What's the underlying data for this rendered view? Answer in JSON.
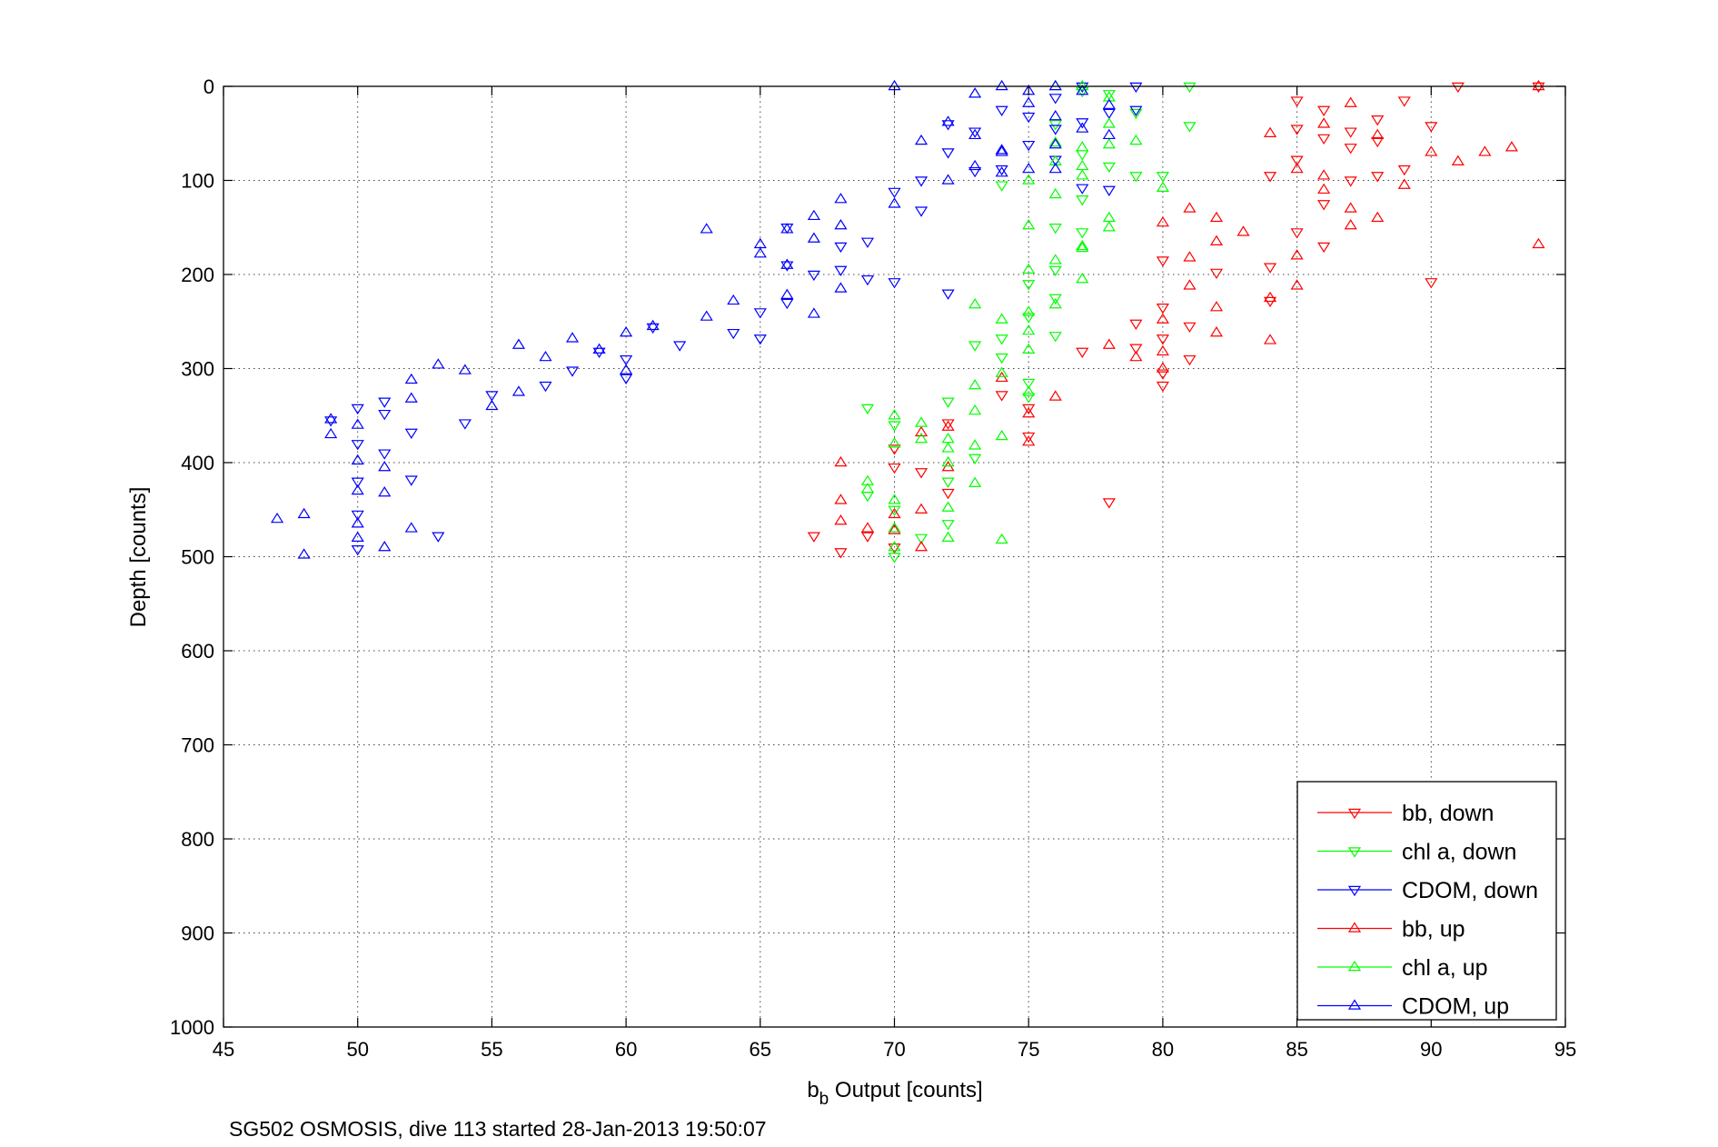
{
  "chart_data": {
    "type": "scatter",
    "title": "",
    "xlabel": "b",
    "xlabel_sub": "b",
    "xlabel_rest": " Output [counts]",
    "ylabel": "Depth [counts]",
    "caption": "SG502 OSMOSIS, dive 113 started 28-Jan-2013 19:50:07",
    "xlim": [
      45,
      95
    ],
    "ylim": [
      0,
      1000
    ],
    "y_reversed": true,
    "x_ticks": [
      45,
      50,
      55,
      60,
      65,
      70,
      75,
      80,
      85,
      90,
      95
    ],
    "y_ticks": [
      0,
      100,
      200,
      300,
      400,
      500,
      600,
      700,
      800,
      900,
      1000
    ],
    "grid": true,
    "legend_position": "bottom-right",
    "colors": {
      "red": "#ff0000",
      "green": "#00ff00",
      "blue": "#0000ff"
    },
    "series": [
      {
        "name": "bb, down",
        "color": "#ff0000",
        "marker": "triangle-down",
        "points": [
          [
            94,
            0
          ],
          [
            91,
            0
          ],
          [
            89,
            15
          ],
          [
            88,
            35
          ],
          [
            88,
            58
          ],
          [
            87,
            65
          ],
          [
            86,
            25
          ],
          [
            85,
            45
          ],
          [
            85,
            78
          ],
          [
            87,
            100
          ],
          [
            86,
            125
          ],
          [
            85,
            155
          ],
          [
            84,
            95
          ],
          [
            88,
            95
          ],
          [
            89,
            88
          ],
          [
            90,
            42
          ],
          [
            90,
            208
          ],
          [
            86,
            170
          ],
          [
            80,
            185
          ],
          [
            80,
            235
          ],
          [
            80,
            268
          ],
          [
            79,
            252
          ],
          [
            79,
            278
          ],
          [
            80,
            305
          ],
          [
            80,
            318
          ],
          [
            81,
            290
          ],
          [
            81,
            255
          ],
          [
            82,
            198
          ],
          [
            84,
            192
          ],
          [
            84,
            228
          ],
          [
            75,
            342
          ],
          [
            74,
            328
          ],
          [
            72,
            358
          ],
          [
            72,
            432
          ],
          [
            70,
            405
          ],
          [
            70,
            385
          ],
          [
            69,
            478
          ],
          [
            70,
            490
          ],
          [
            71,
            410
          ],
          [
            67,
            478
          ],
          [
            68,
            495
          ],
          [
            75,
            372
          ],
          [
            77,
            282
          ],
          [
            78,
            442
          ],
          [
            86,
            55
          ],
          [
            87,
            48
          ],
          [
            85,
            15
          ]
        ]
      },
      {
        "name": "chl a, down",
        "color": "#00ff00",
        "marker": "triangle-down",
        "points": [
          [
            81,
            0
          ],
          [
            81,
            42
          ],
          [
            79,
            28
          ],
          [
            79,
            95
          ],
          [
            78,
            8
          ],
          [
            77,
            5
          ],
          [
            76,
            40
          ],
          [
            77,
            72
          ],
          [
            78,
            85
          ],
          [
            77,
            120
          ],
          [
            76,
            150
          ],
          [
            76,
            195
          ],
          [
            77,
            155
          ],
          [
            76,
            225
          ],
          [
            75,
            210
          ],
          [
            74,
            105
          ],
          [
            75,
            245
          ],
          [
            74,
            288
          ],
          [
            75,
            315
          ],
          [
            74,
            268
          ],
          [
            73,
            275
          ],
          [
            72,
            335
          ],
          [
            73,
            395
          ],
          [
            72,
            420
          ],
          [
            70,
            360
          ],
          [
            69,
            342
          ],
          [
            69,
            435
          ],
          [
            70,
            450
          ],
          [
            71,
            480
          ],
          [
            70,
            500
          ],
          [
            72,
            465
          ],
          [
            80,
            95
          ],
          [
            76,
            265
          ],
          [
            75,
            330
          ]
        ]
      },
      {
        "name": "CDOM, down",
        "color": "#0000ff",
        "marker": "triangle-down",
        "points": [
          [
            79,
            0
          ],
          [
            79,
            25
          ],
          [
            78,
            28
          ],
          [
            78,
            110
          ],
          [
            77,
            0
          ],
          [
            77,
            38
          ],
          [
            77,
            108
          ],
          [
            76,
            12
          ],
          [
            76,
            45
          ],
          [
            76,
            78
          ],
          [
            75,
            32
          ],
          [
            75,
            62
          ],
          [
            74,
            88
          ],
          [
            74,
            25
          ],
          [
            73,
            90
          ],
          [
            73,
            48
          ],
          [
            72,
            40
          ],
          [
            72,
            70
          ],
          [
            71,
            100
          ],
          [
            71,
            132
          ],
          [
            70,
            112
          ],
          [
            70,
            208
          ],
          [
            69,
            165
          ],
          [
            69,
            205
          ],
          [
            68,
            170
          ],
          [
            68,
            195
          ],
          [
            67,
            200
          ],
          [
            66,
            150
          ],
          [
            66,
            190
          ],
          [
            66,
            230
          ],
          [
            65,
            240
          ],
          [
            65,
            268
          ],
          [
            64,
            262
          ],
          [
            62,
            275
          ],
          [
            61,
            256
          ],
          [
            60,
            290
          ],
          [
            60,
            310
          ],
          [
            59,
            282
          ],
          [
            58,
            302
          ],
          [
            57,
            318
          ],
          [
            55,
            328
          ],
          [
            54,
            358
          ],
          [
            53,
            478
          ],
          [
            52,
            368
          ],
          [
            52,
            418
          ],
          [
            51,
            335
          ],
          [
            51,
            348
          ],
          [
            51,
            390
          ],
          [
            50,
            342
          ],
          [
            50,
            380
          ],
          [
            50,
            420
          ],
          [
            50,
            455
          ],
          [
            50,
            492
          ],
          [
            49,
            355
          ],
          [
            72,
            220
          ]
        ]
      },
      {
        "name": "bb, up",
        "color": "#ff0000",
        "marker": "triangle-up",
        "points": [
          [
            94,
            0
          ],
          [
            93,
            65
          ],
          [
            92,
            70
          ],
          [
            91,
            80
          ],
          [
            90,
            70
          ],
          [
            94,
            168
          ],
          [
            89,
            105
          ],
          [
            88,
            140
          ],
          [
            87,
            130
          ],
          [
            87,
            148
          ],
          [
            86,
            110
          ],
          [
            86,
            95
          ],
          [
            85,
            180
          ],
          [
            85,
            212
          ],
          [
            84,
            50
          ],
          [
            84,
            225
          ],
          [
            84,
            270
          ],
          [
            83,
            155
          ],
          [
            82,
            140
          ],
          [
            82,
            165
          ],
          [
            82,
            235
          ],
          [
            82,
            262
          ],
          [
            81,
            130
          ],
          [
            81,
            182
          ],
          [
            81,
            212
          ],
          [
            80,
            145
          ],
          [
            80,
            248
          ],
          [
            80,
            282
          ],
          [
            80,
            300
          ],
          [
            79,
            288
          ],
          [
            78,
            275
          ],
          [
            76,
            330
          ],
          [
            75,
            348
          ],
          [
            75,
            378
          ],
          [
            74,
            310
          ],
          [
            72,
            362
          ],
          [
            72,
            405
          ],
          [
            71,
            368
          ],
          [
            71,
            450
          ],
          [
            71,
            490
          ],
          [
            70,
            455
          ],
          [
            70,
            472
          ],
          [
            69,
            470
          ],
          [
            68,
            400
          ],
          [
            68,
            440
          ],
          [
            68,
            462
          ],
          [
            85,
            88
          ],
          [
            87,
            18
          ],
          [
            88,
            52
          ],
          [
            86,
            40
          ]
        ]
      },
      {
        "name": "chl a, up",
        "color": "#00ff00",
        "marker": "triangle-up",
        "points": [
          [
            76,
            0
          ],
          [
            77,
            0
          ],
          [
            78,
            12
          ],
          [
            78,
            40
          ],
          [
            77,
            65
          ],
          [
            76,
            80
          ],
          [
            77,
            85
          ],
          [
            78,
            62
          ],
          [
            78,
            140
          ],
          [
            78,
            150
          ],
          [
            77,
            95
          ],
          [
            77,
            172
          ],
          [
            77,
            205
          ],
          [
            76,
            115
          ],
          [
            76,
            185
          ],
          [
            76,
            232
          ],
          [
            75,
            100
          ],
          [
            75,
            148
          ],
          [
            75,
            195
          ],
          [
            75,
            240
          ],
          [
            75,
            260
          ],
          [
            75,
            280
          ],
          [
            74,
            248
          ],
          [
            74,
            305
          ],
          [
            74,
            372
          ],
          [
            74,
            482
          ],
          [
            73,
            232
          ],
          [
            73,
            318
          ],
          [
            73,
            345
          ],
          [
            73,
            382
          ],
          [
            73,
            422
          ],
          [
            72,
            375
          ],
          [
            72,
            385
          ],
          [
            72,
            400
          ],
          [
            72,
            448
          ],
          [
            72,
            480
          ],
          [
            71,
            358
          ],
          [
            71,
            375
          ],
          [
            70,
            350
          ],
          [
            70,
            380
          ],
          [
            70,
            440
          ],
          [
            70,
            470
          ],
          [
            70,
            490
          ],
          [
            69,
            420
          ],
          [
            69,
            428
          ],
          [
            80,
            108
          ],
          [
            79,
            58
          ],
          [
            76,
            60
          ],
          [
            77,
            170
          ],
          [
            75,
            325
          ]
        ]
      },
      {
        "name": "CDOM, up",
        "color": "#0000ff",
        "marker": "triangle-up",
        "points": [
          [
            70,
            0
          ],
          [
            71,
            58
          ],
          [
            72,
            38
          ],
          [
            73,
            8
          ],
          [
            73,
            52
          ],
          [
            73,
            85
          ],
          [
            74,
            0
          ],
          [
            74,
            70
          ],
          [
            74,
            92
          ],
          [
            75,
            5
          ],
          [
            75,
            88
          ],
          [
            76,
            0
          ],
          [
            76,
            32
          ],
          [
            76,
            62
          ],
          [
            76,
            88
          ],
          [
            77,
            5
          ],
          [
            77,
            45
          ],
          [
            78,
            20
          ],
          [
            78,
            52
          ],
          [
            75,
            18
          ],
          [
            74,
            68
          ],
          [
            72,
            100
          ],
          [
            70,
            125
          ],
          [
            68,
            120
          ],
          [
            68,
            148
          ],
          [
            68,
            215
          ],
          [
            67,
            138
          ],
          [
            67,
            162
          ],
          [
            67,
            242
          ],
          [
            66,
            152
          ],
          [
            66,
            190
          ],
          [
            66,
            222
          ],
          [
            65,
            168
          ],
          [
            65,
            178
          ],
          [
            64,
            228
          ],
          [
            63,
            152
          ],
          [
            63,
            245
          ],
          [
            61,
            255
          ],
          [
            60,
            262
          ],
          [
            60,
            302
          ],
          [
            59,
            280
          ],
          [
            58,
            268
          ],
          [
            57,
            288
          ],
          [
            56,
            275
          ],
          [
            56,
            325
          ],
          [
            55,
            340
          ],
          [
            54,
            302
          ],
          [
            53,
            296
          ],
          [
            52,
            312
          ],
          [
            52,
            332
          ],
          [
            52,
            470
          ],
          [
            51,
            405
          ],
          [
            51,
            432
          ],
          [
            51,
            490
          ],
          [
            50,
            360
          ],
          [
            50,
            398
          ],
          [
            50,
            430
          ],
          [
            50,
            465
          ],
          [
            50,
            480
          ],
          [
            49,
            370
          ],
          [
            48,
            455
          ],
          [
            48,
            498
          ],
          [
            47,
            460
          ],
          [
            49,
            354
          ]
        ]
      }
    ]
  }
}
